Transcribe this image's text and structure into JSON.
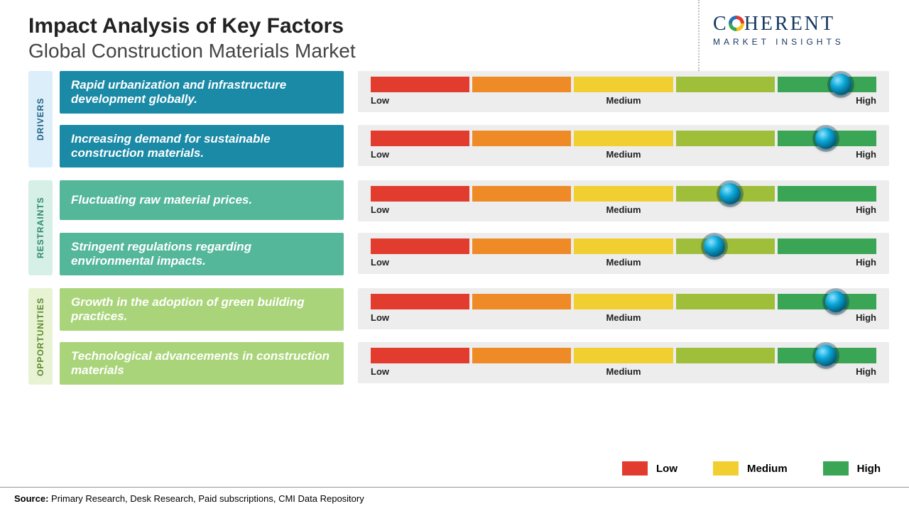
{
  "header": {
    "title": "Impact Analysis of Key Factors",
    "subtitle": "Global Construction Materials Market"
  },
  "logo": {
    "text_left": "C",
    "text_right": "HERENT",
    "sub": "MARKET INSIGHTS"
  },
  "scale": {
    "low": "Low",
    "medium": "Medium",
    "high": "High",
    "segment_colors": [
      "#e23c2f",
      "#ef8b26",
      "#f2cf30",
      "#9fbf3b",
      "#3aa655"
    ]
  },
  "groups": [
    {
      "label": "DRIVERS",
      "tab_bg": "#dceefa",
      "tab_fg": "#1e607f",
      "box_bg": "#1b8aa6",
      "rows": [
        {
          "text": "Rapid urbanization and infrastructure development globally.",
          "knob_pct": 93
        },
        {
          "text": "Increasing demand for sustainable construction materials.",
          "knob_pct": 90
        }
      ]
    },
    {
      "label": "RESTRAINTS",
      "tab_bg": "#d6efe7",
      "tab_fg": "#2d8a6e",
      "box_bg": "#55b79a",
      "rows": [
        {
          "text": "Fluctuating raw material prices.",
          "knob_pct": 71
        },
        {
          "text": "Stringent regulations regarding environmental impacts.",
          "knob_pct": 68
        }
      ]
    },
    {
      "label": "OPPORTUNITIES",
      "tab_bg": "#e8f3d4",
      "tab_fg": "#5a8a2e",
      "box_bg": "#aad47a",
      "rows": [
        {
          "text": "Growth in the adoption of green building practices.",
          "knob_pct": 92
        },
        {
          "text": "Technological advancements in construction materials",
          "knob_pct": 90
        }
      ]
    }
  ],
  "legend": {
    "items": [
      {
        "label": "Low",
        "color": "#e23c2f"
      },
      {
        "label": "Medium",
        "color": "#f2cf30"
      },
      {
        "label": "High",
        "color": "#3aa655"
      }
    ]
  },
  "source": {
    "label": "Source:",
    "text": " Primary Research, Desk Research, Paid subscriptions, CMI Data Repository"
  }
}
